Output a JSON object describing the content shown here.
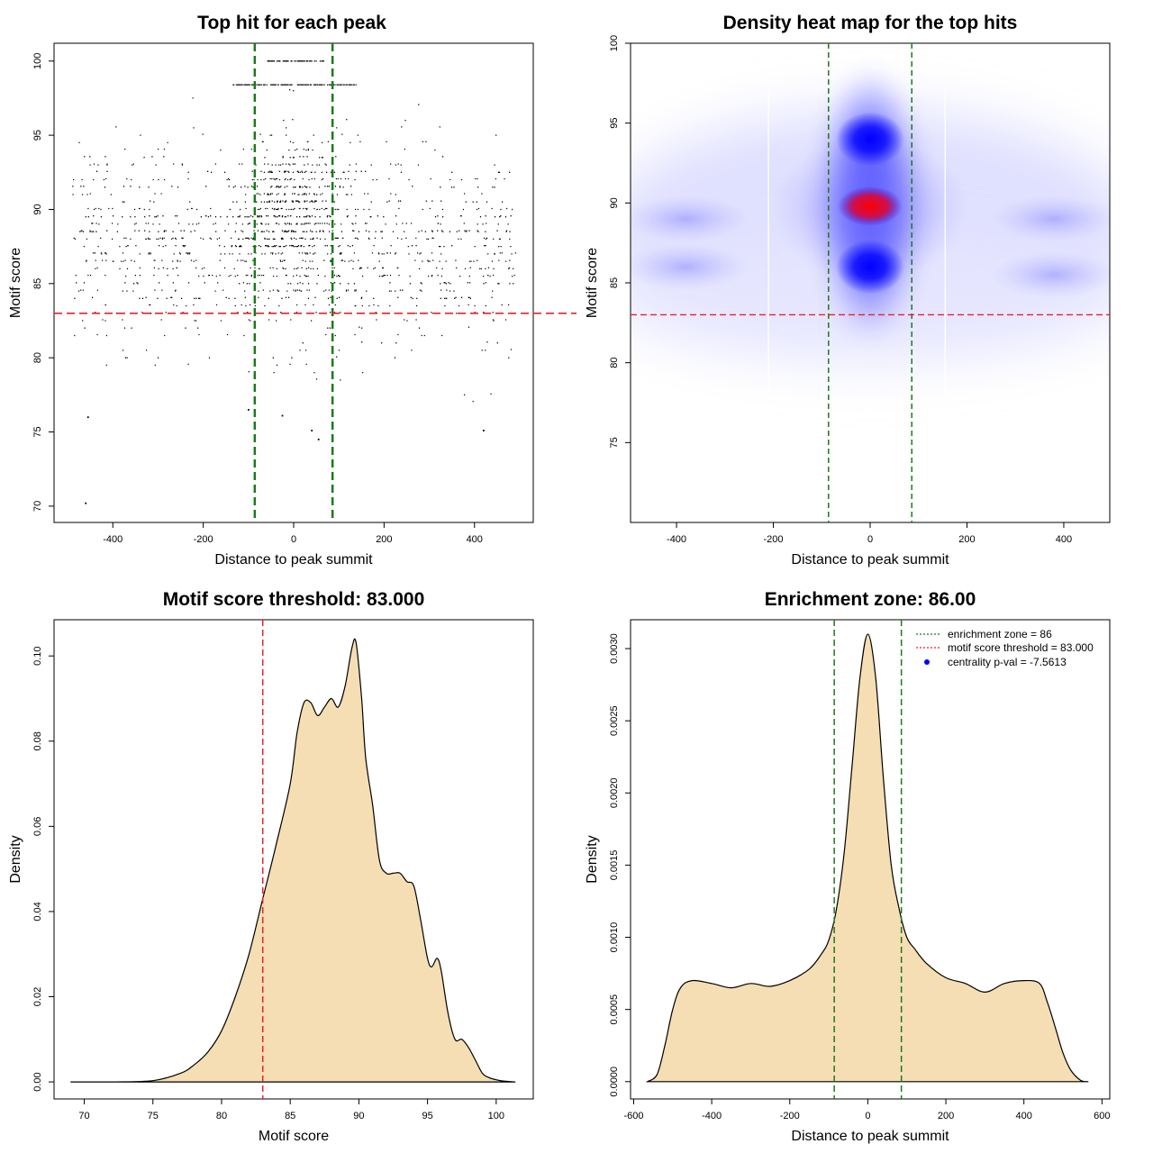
{
  "colors": {
    "threshold_line": "#e8202a",
    "zone_line": "#1a7a1a",
    "density_fill": "#f5deb3",
    "heat_low": "#ffffff",
    "heat_mid": "#0000ff",
    "heat_high": "#ff0000",
    "points": "#000000"
  },
  "chart_data": [
    {
      "type": "scatter",
      "title": "Top hit for each peak",
      "xlabel": "Distance to peak summit",
      "ylabel": "Motif score",
      "xlim": [
        -530,
        530
      ],
      "ylim": [
        68.9,
        101.2
      ],
      "xticks": [
        -400,
        -200,
        0,
        200,
        400
      ],
      "yticks": [
        70,
        75,
        80,
        85,
        90,
        95,
        100
      ],
      "grid": false,
      "x_range_of_points": [
        -490,
        490
      ],
      "density_peak": {
        "x": 0,
        "y": 89.5
      },
      "outliers": [
        {
          "x": -460,
          "y": 70.2
        },
        {
          "x": -455,
          "y": 76.0
        },
        {
          "x": -100,
          "y": 76.5
        },
        {
          "x": -25,
          "y": 76.1
        },
        {
          "x": 40,
          "y": 75.1
        },
        {
          "x": 55,
          "y": 74.5
        },
        {
          "x": 420,
          "y": 75.1
        }
      ],
      "h_line": {
        "y": 83.0,
        "style": "dashed",
        "color": "red"
      },
      "v_lines": [
        {
          "x": -86,
          "style": "dashed",
          "color": "green"
        },
        {
          "x": 86,
          "style": "dashed",
          "color": "green"
        }
      ]
    },
    {
      "type": "heatmap",
      "title": "Density heat map for the top hits",
      "xlabel": "Distance to peak summit",
      "ylabel": "Motif score",
      "xlim": [
        -495,
        495
      ],
      "ylim": [
        70.0,
        100.0
      ],
      "xticks": [
        -400,
        -200,
        0,
        200,
        400
      ],
      "yticks": [
        75,
        80,
        85,
        90,
        95,
        100
      ],
      "hotspots": [
        {
          "x": 0,
          "y": 89.8,
          "level": "max"
        },
        {
          "x": 0,
          "y": 94.0,
          "level": "high"
        },
        {
          "x": 0,
          "y": 86.0,
          "level": "high"
        },
        {
          "x": -380,
          "y": 89.0,
          "level": "low"
        },
        {
          "x": 380,
          "y": 89.0,
          "level": "low"
        },
        {
          "x": -380,
          "y": 86.0,
          "level": "low"
        },
        {
          "x": 380,
          "y": 85.5,
          "level": "low"
        }
      ],
      "h_line": {
        "y": 83.0,
        "style": "dashed",
        "color": "red"
      },
      "v_lines": [
        {
          "x": -86,
          "style": "dashed",
          "color": "green"
        },
        {
          "x": 86,
          "style": "dashed",
          "color": "green"
        }
      ]
    },
    {
      "type": "area",
      "title": "Motif score threshold: 83.000",
      "xlabel": "Motif score",
      "ylabel": "Density",
      "xlim": [
        67.8,
        102.7
      ],
      "ylim": [
        -0.004,
        0.1085
      ],
      "xticks": [
        70,
        75,
        80,
        85,
        90,
        95,
        100
      ],
      "yticks": [
        0.0,
        0.02,
        0.04,
        0.06,
        0.08,
        0.1
      ],
      "ytick_labels": [
        "0.00",
        "0.02",
        "0.04",
        "0.06",
        "0.08",
        "0.10"
      ],
      "x": [
        69,
        72,
        75,
        77,
        78,
        79,
        80,
        81,
        82,
        83,
        84,
        85,
        85.5,
        86,
        86.5,
        87,
        87.5,
        88,
        88.5,
        89,
        89.5,
        89.8,
        90.2,
        90.5,
        91,
        91.5,
        92,
        92.5,
        93,
        93.5,
        94,
        94.5,
        95,
        95.3,
        95.7,
        96,
        96.5,
        97,
        97.5,
        98,
        98.5,
        99,
        99.5,
        100,
        100.5,
        101.4
      ],
      "values": [
        0.0,
        0.0,
        0.0003,
        0.002,
        0.004,
        0.007,
        0.012,
        0.02,
        0.03,
        0.043,
        0.056,
        0.07,
        0.082,
        0.089,
        0.089,
        0.086,
        0.088,
        0.09,
        0.088,
        0.093,
        0.102,
        0.103,
        0.09,
        0.076,
        0.065,
        0.052,
        0.049,
        0.049,
        0.049,
        0.047,
        0.046,
        0.038,
        0.029,
        0.027,
        0.029,
        0.026,
        0.016,
        0.01,
        0.01,
        0.008,
        0.005,
        0.002,
        0.001,
        0.0005,
        0.0002,
        0.0
      ],
      "v_line": {
        "x": 83.0,
        "style": "dashed",
        "color": "red"
      }
    },
    {
      "type": "area",
      "title": "Enrichment zone: 86.00",
      "xlabel": "Distance to peak summit",
      "ylabel": "Density",
      "xlim": [
        -608,
        620
      ],
      "ylim": [
        -0.00012,
        0.0032
      ],
      "xticks": [
        -600,
        -400,
        -200,
        0,
        200,
        400,
        600
      ],
      "yticks": [
        0.0,
        0.0005,
        0.001,
        0.0015,
        0.002,
        0.0025,
        0.003
      ],
      "ytick_labels": [
        "0.0000",
        "0.0005",
        "0.0010",
        "0.0015",
        "0.0020",
        "0.0025",
        "0.0030"
      ],
      "x": [
        -565,
        -540,
        -520,
        -500,
        -480,
        -450,
        -400,
        -350,
        -300,
        -250,
        -200,
        -150,
        -120,
        -100,
        -80,
        -60,
        -40,
        -20,
        0,
        20,
        40,
        60,
        80,
        100,
        120,
        150,
        200,
        250,
        300,
        350,
        400,
        440,
        460,
        480,
        500,
        520,
        545,
        565
      ],
      "values": [
        0.0,
        5e-05,
        0.00025,
        0.0005,
        0.00065,
        0.0007,
        0.00068,
        0.00065,
        0.00068,
        0.00066,
        0.0007,
        0.00078,
        0.00088,
        0.00098,
        0.0012,
        0.0016,
        0.0022,
        0.0028,
        0.0031,
        0.0028,
        0.0021,
        0.0015,
        0.0012,
        0.001,
        0.00092,
        0.00082,
        0.00072,
        0.00068,
        0.00062,
        0.00068,
        0.0007,
        0.00068,
        0.00055,
        0.00038,
        0.0002,
        8e-05,
        1e-05,
        0.0
      ],
      "v_lines": [
        {
          "x": -86,
          "style": "dashed",
          "color": "green"
        },
        {
          "x": 86,
          "style": "dashed",
          "color": "green"
        }
      ],
      "legend": {
        "position": "top-right",
        "entries": [
          {
            "label": "enrichment zone = 86",
            "color": "green",
            "kind": "dotted-line"
          },
          {
            "label": "motif score threshold = 83.000",
            "color": "red",
            "kind": "dotted-line"
          },
          {
            "label": "centrality p-val = -7.5613",
            "color": "blue",
            "kind": "point"
          }
        ]
      }
    }
  ]
}
